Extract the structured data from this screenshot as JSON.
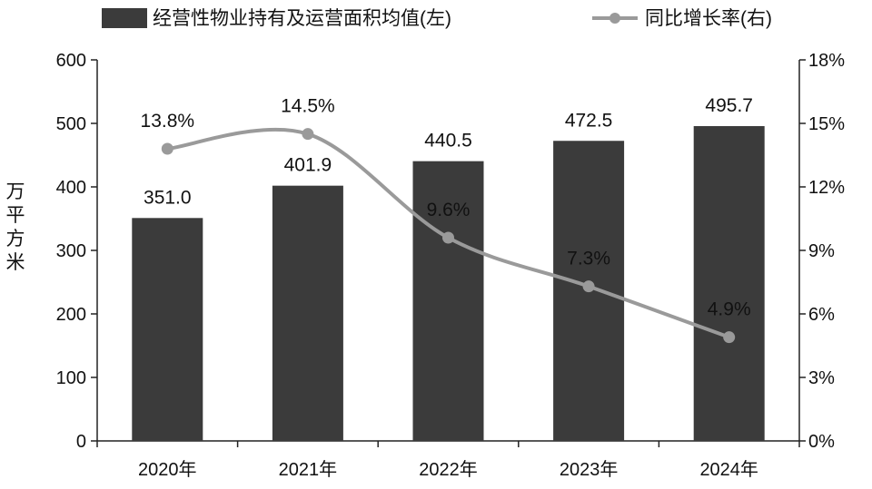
{
  "chart_data": {
    "type": "bar+line",
    "categories": [
      "2020年",
      "2021年",
      "2022年",
      "2023年",
      "2024年"
    ],
    "series": [
      {
        "name": "经营性物业持有及运营面积均值(左)",
        "type": "bar",
        "axis": "left",
        "values": [
          351.0,
          401.9,
          440.5,
          472.5,
          495.7
        ],
        "labels": [
          "351.0",
          "401.9",
          "440.5",
          "472.5",
          "495.7"
        ],
        "color": "#3b3b3b"
      },
      {
        "name": "同比增长率(右)",
        "type": "line",
        "axis": "right",
        "values": [
          13.8,
          14.5,
          9.6,
          7.3,
          4.9
        ],
        "labels": [
          "13.8%",
          "14.5%",
          "9.6%",
          "7.3%",
          "4.9%"
        ],
        "color": "#9a9a9a"
      }
    ],
    "ylabel": "万平方米",
    "ylim": [
      0,
      600
    ],
    "yticks": [
      "0",
      "100",
      "200",
      "300",
      "400",
      "500",
      "600"
    ],
    "y2lim": [
      0,
      18
    ],
    "y2ticks": [
      "0%",
      "3%",
      "6%",
      "9%",
      "12%",
      "15%",
      "18%"
    ],
    "legend": "top",
    "grid": false
  }
}
